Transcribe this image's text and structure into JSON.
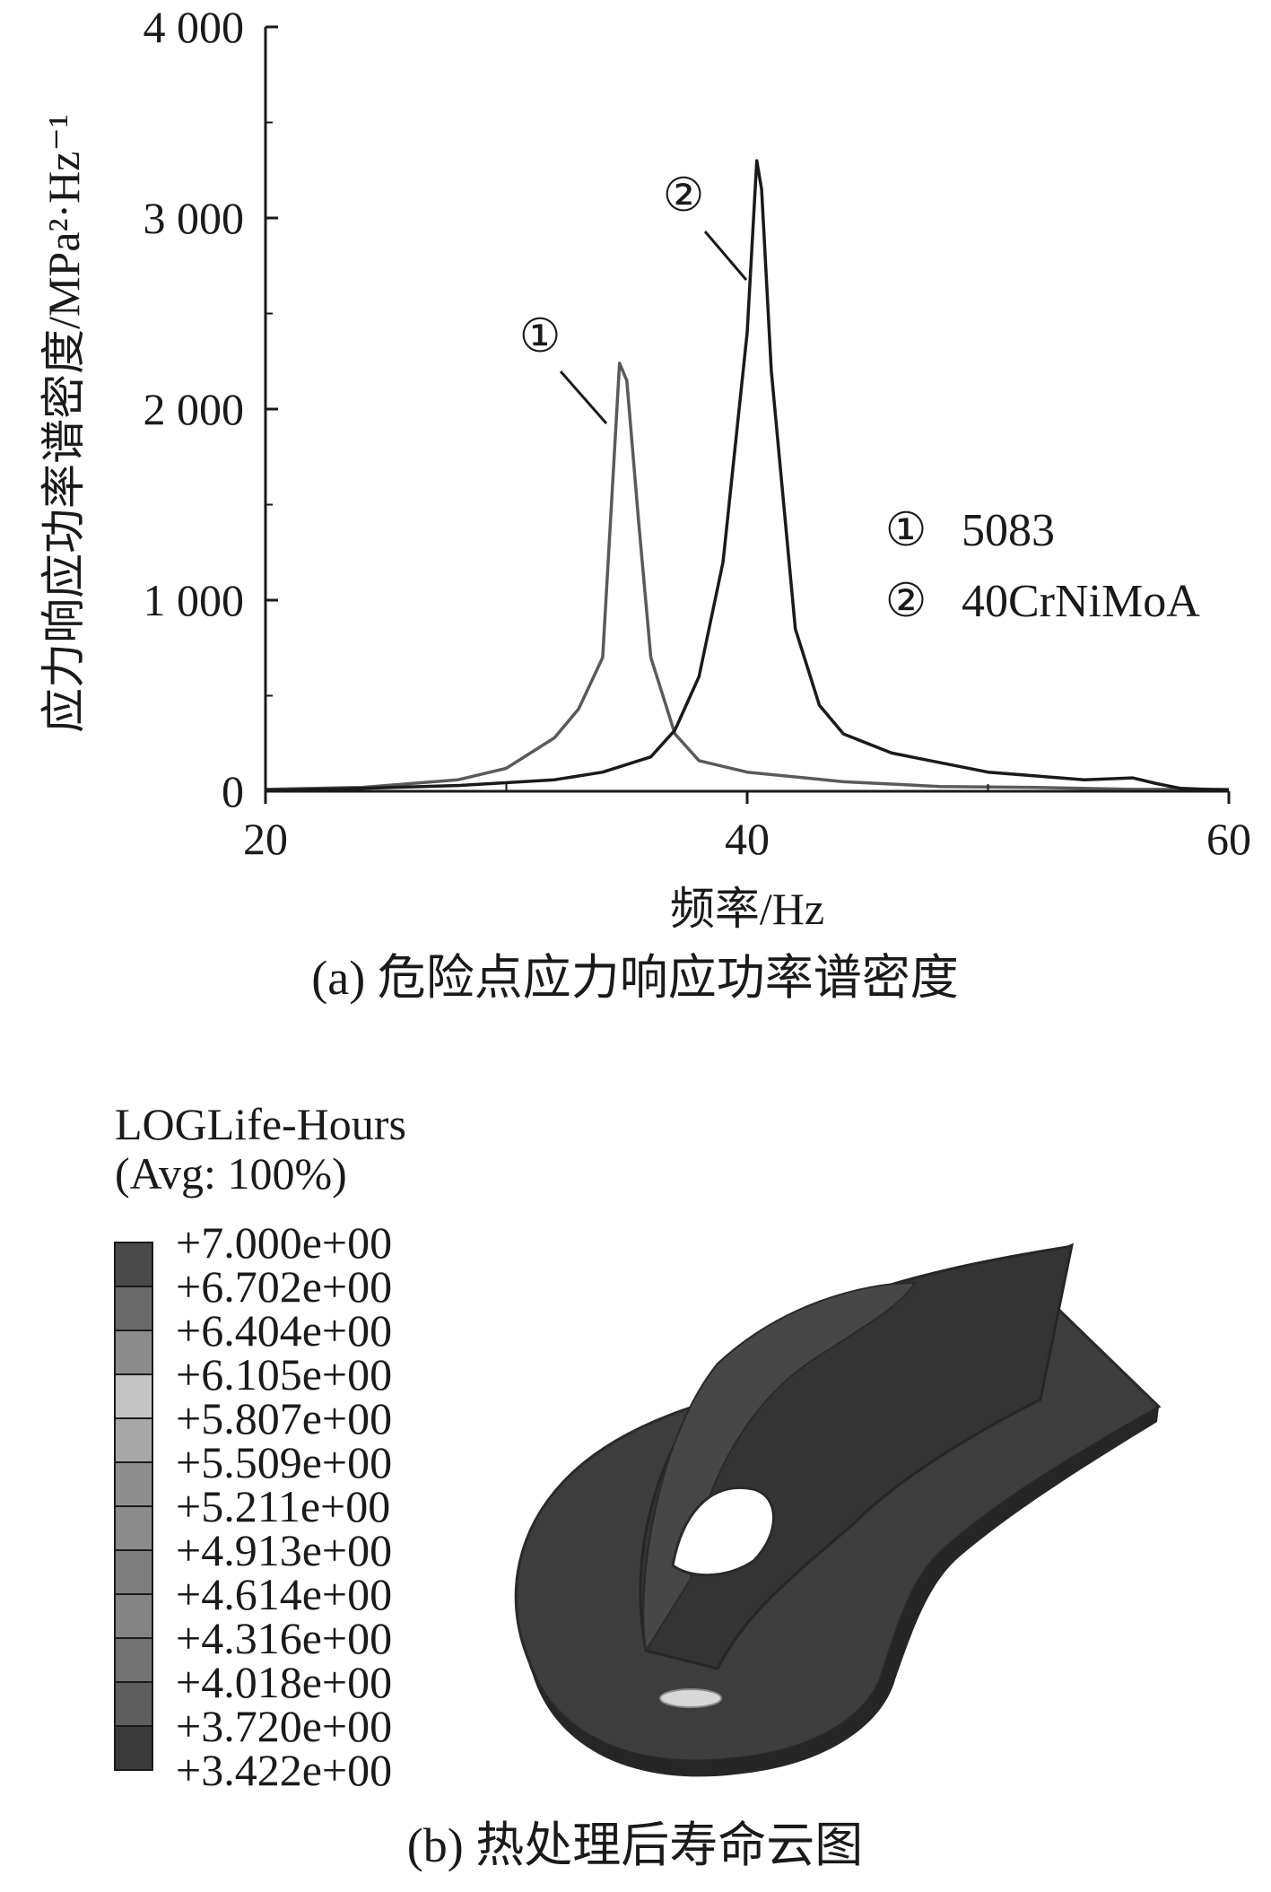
{
  "chart_data": [
    {
      "type": "line",
      "title": "",
      "xlabel": "频率/Hz",
      "ylabel": "应力响应功率谱密度/MPa²·Hz⁻¹",
      "xlim": [
        20,
        60
      ],
      "ylim": [
        0,
        4000
      ],
      "x_ticks": [
        20,
        40,
        60
      ],
      "x_tick_labels": [
        "20",
        "40",
        "60"
      ],
      "y_ticks": [
        0,
        1000,
        2000,
        3000,
        4000
      ],
      "y_tick_labels": [
        "0",
        "1 000",
        "2 000",
        "3 000",
        "4 000"
      ],
      "grid": false,
      "legend_position": "right",
      "series": [
        {
          "name": "5083",
          "marker": "①",
          "color": "#5a5a5a",
          "x": [
            20,
            24,
            28,
            30,
            32,
            33,
            34,
            34.7,
            35.0,
            35.5,
            36,
            37,
            38,
            40,
            44,
            48,
            52,
            56,
            60
          ],
          "y": [
            10,
            20,
            60,
            120,
            280,
            430,
            700,
            2240,
            2150,
            1400,
            700,
            300,
            160,
            100,
            50,
            25,
            20,
            10,
            10
          ]
        },
        {
          "name": "40CrNiMoA",
          "marker": "②",
          "color": "#1a1a1a",
          "x": [
            20,
            24,
            28,
            32,
            34,
            36,
            37,
            38,
            39,
            40,
            40.4,
            40.6,
            41,
            42,
            43,
            44,
            46,
            50,
            54,
            56,
            57,
            58,
            60
          ],
          "y": [
            5,
            15,
            30,
            60,
            100,
            180,
            320,
            600,
            1200,
            2400,
            3300,
            3150,
            2200,
            850,
            450,
            300,
            200,
            100,
            60,
            70,
            40,
            15,
            5
          ]
        }
      ],
      "annotations": [
        "①",
        "②"
      ],
      "caption": "(a) 危险点应力响应功率谱密度"
    }
  ],
  "legend": {
    "s1": {
      "marker": "①",
      "label": "5083"
    },
    "s2": {
      "marker": "②",
      "label": "40CrNiMoA"
    }
  },
  "contour": {
    "title_line1": "LOGLife-Hours",
    "title_line2": "(Avg: 100%)",
    "labels": [
      "+7.000e+00",
      "+6.702e+00",
      "+6.404e+00",
      "+6.105e+00",
      "+5.807e+00",
      "+5.509e+00",
      "+5.211e+00",
      "+4.913e+00",
      "+4.614e+00",
      "+4.316e+00",
      "+4.018e+00",
      "+3.720e+00",
      "+3.422e+00"
    ],
    "band_colors": [
      "#4a4a4a",
      "#6a6a6a",
      "#8c8c8c",
      "#c4c4c4",
      "#a8a8a8",
      "#8e8e8e",
      "#8a8a8a",
      "#7e7e7e",
      "#848484",
      "#727272",
      "#5e5e5e",
      "#3a3a3a"
    ],
    "caption": "(b) 热处理后寿命云图"
  }
}
